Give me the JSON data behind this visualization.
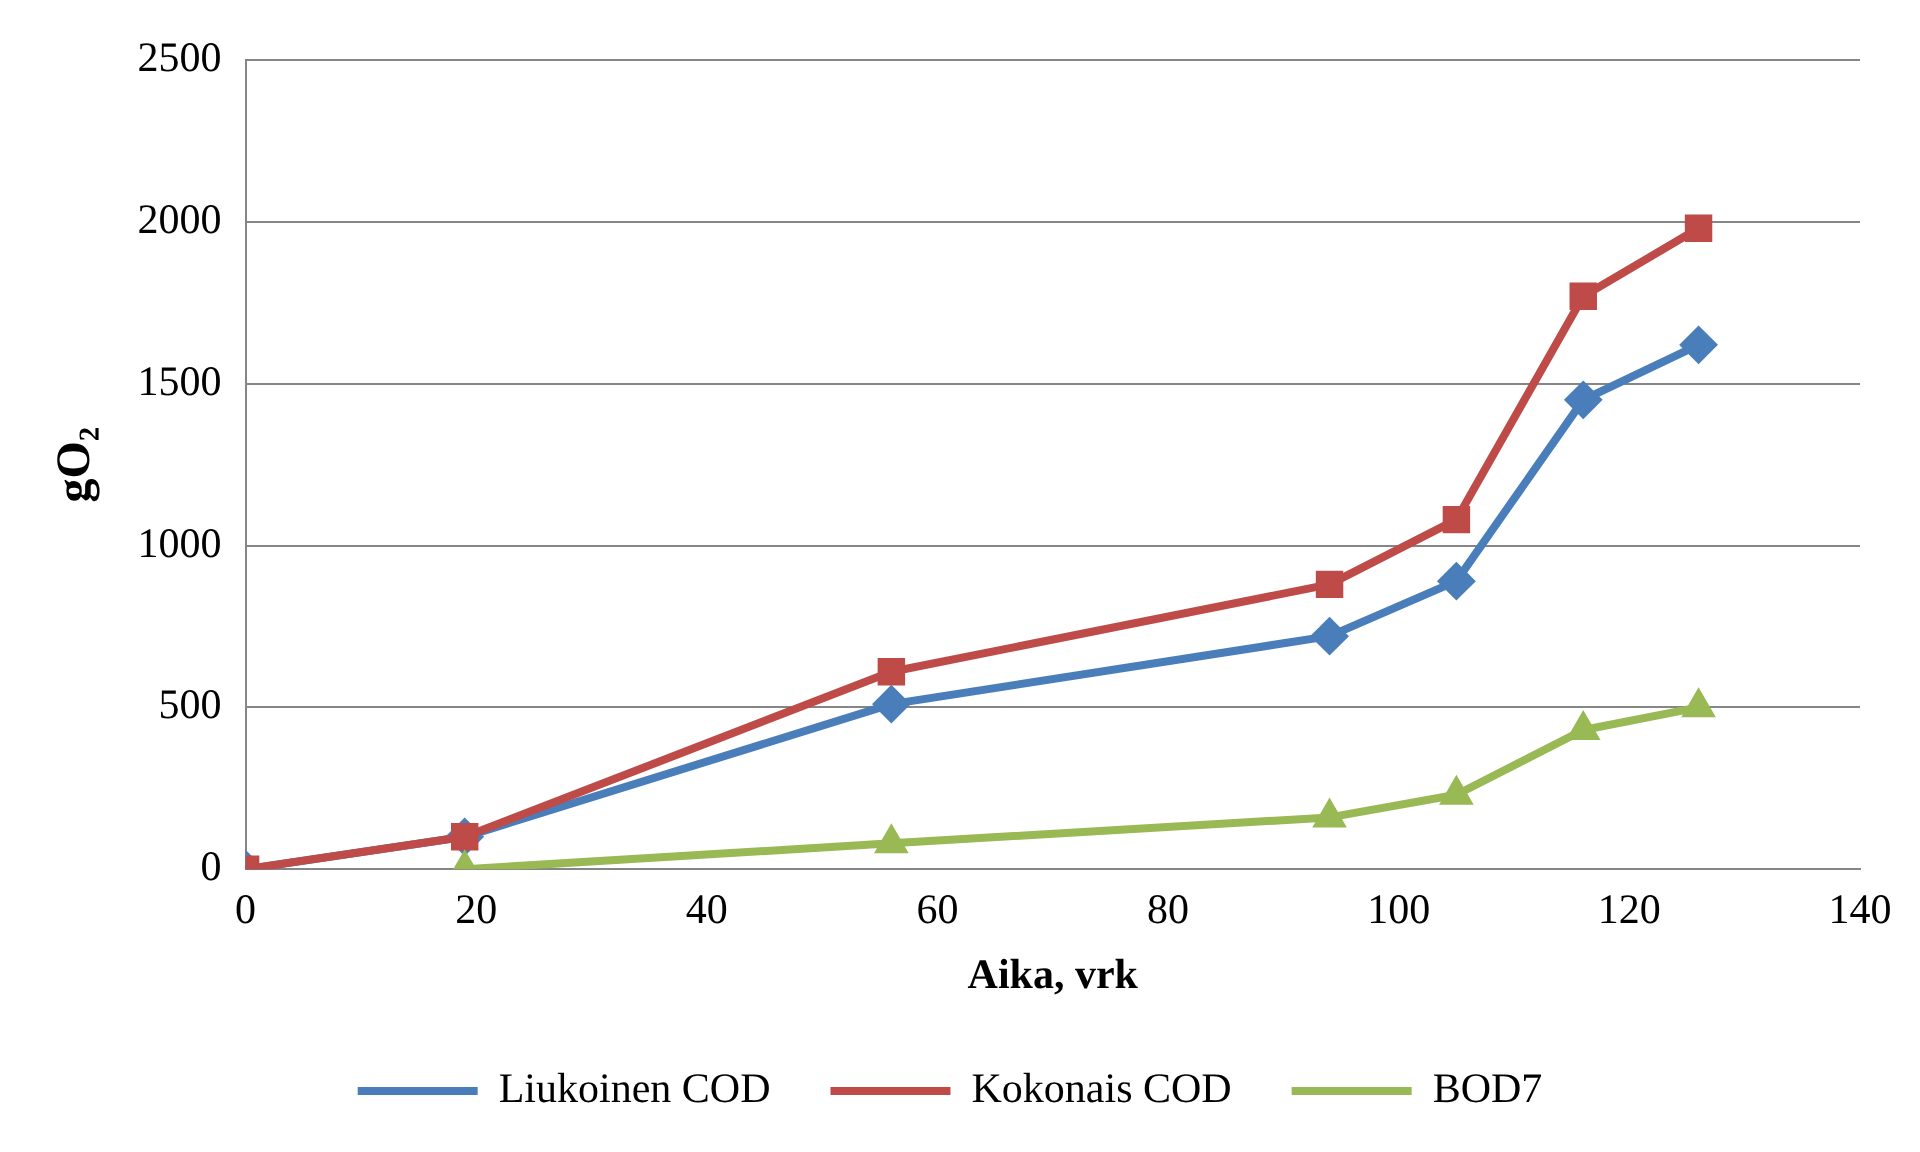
{
  "chart_data": {
    "type": "line",
    "xlabel": "Aika, vrk",
    "ylabel": "gO₂",
    "x": [
      0,
      19,
      56,
      94,
      105,
      116,
      126
    ],
    "series": [
      {
        "name": "Liukoinen COD",
        "color": "#4a7ebb",
        "marker": "diamond",
        "values": [
          0,
          100,
          510,
          720,
          890,
          1450,
          1620
        ]
      },
      {
        "name": "Kokonais COD",
        "color": "#be4b48",
        "marker": "square",
        "values": [
          0,
          100,
          610,
          880,
          1080,
          1770,
          1980
        ]
      },
      {
        "name": "BOD7",
        "color": "#98b954",
        "marker": "triangle",
        "x": [
          19,
          56,
          94,
          105,
          116,
          126
        ],
        "values": [
          0,
          80,
          160,
          230,
          430,
          500
        ]
      }
    ],
    "xlim": [
      0,
      140
    ],
    "xticks": [
      0,
      20,
      40,
      60,
      80,
      100,
      120,
      140
    ],
    "ylim": [
      0,
      2500
    ],
    "yticks": [
      0,
      500,
      1000,
      1500,
      2000,
      2500
    ],
    "grid": "y",
    "legend": "bottom",
    "line_style": "solid"
  }
}
